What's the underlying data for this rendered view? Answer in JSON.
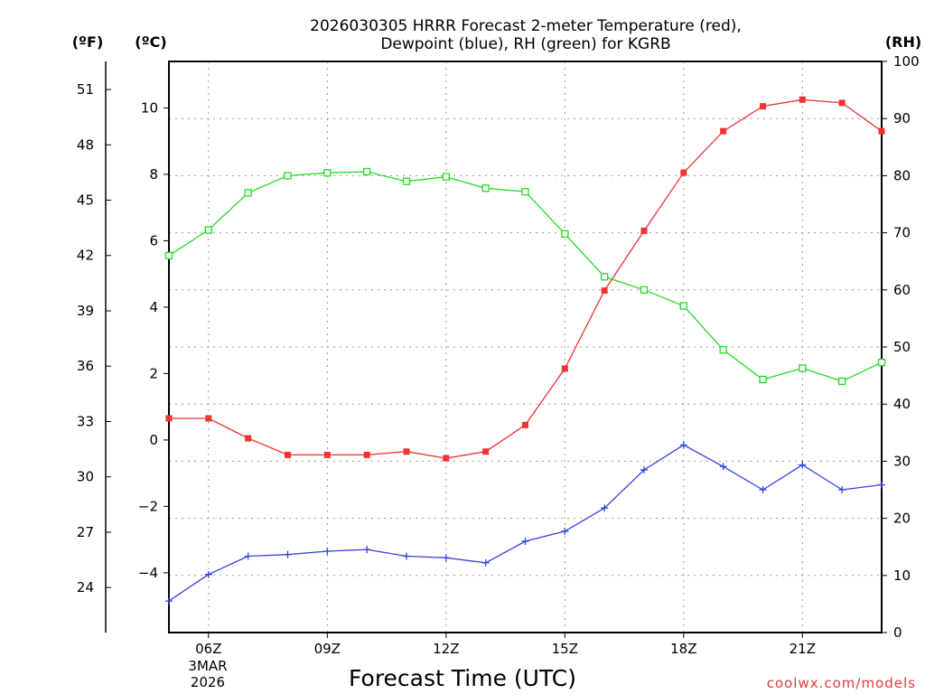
{
  "chart_data": {
    "type": "line",
    "title_line1": "2026030305 HRRR Forecast 2-meter Temperature (red),",
    "title_line2": "Dewpoint (blue), RH (green) for KGRB",
    "xlabel": "Forecast Time (UTC)",
    "credit": "coolwx.com/models",
    "date_label_line1": "3MAR",
    "date_label_line2": "2026",
    "units": {
      "fahrenheit": "(ºF)",
      "celsius": "(ºC)",
      "rh": "(RH)"
    },
    "x_hours": [
      5,
      6,
      7,
      8,
      9,
      10,
      11,
      12,
      13,
      14,
      15,
      16,
      17,
      18,
      19,
      20,
      21,
      22,
      23
    ],
    "x_range": [
      5,
      23
    ],
    "x_ticks": [
      {
        "hour": 6,
        "label": "06Z"
      },
      {
        "hour": 9,
        "label": "09Z"
      },
      {
        "hour": 12,
        "label": "12Z"
      },
      {
        "hour": 15,
        "label": "15Z"
      },
      {
        "hour": 18,
        "label": "18Z"
      },
      {
        "hour": 21,
        "label": "21Z"
      }
    ],
    "celsius_range": [
      -5.8,
      11.4
    ],
    "celsius_ticks": [
      {
        "value": -4,
        "label": "−4"
      },
      {
        "value": -2,
        "label": "−2"
      },
      {
        "value": 0,
        "label": "0"
      },
      {
        "value": 2,
        "label": "2"
      },
      {
        "value": 4,
        "label": "4"
      },
      {
        "value": 6,
        "label": "6"
      },
      {
        "value": 8,
        "label": "8"
      },
      {
        "value": 10,
        "label": "10"
      }
    ],
    "fahrenheit_ticks": [
      {
        "value": 24,
        "label": "24"
      },
      {
        "value": 27,
        "label": "27"
      },
      {
        "value": 30,
        "label": "30"
      },
      {
        "value": 33,
        "label": "33"
      },
      {
        "value": 36,
        "label": "36"
      },
      {
        "value": 39,
        "label": "39"
      },
      {
        "value": 42,
        "label": "42"
      },
      {
        "value": 45,
        "label": "45"
      },
      {
        "value": 48,
        "label": "48"
      },
      {
        "value": 51,
        "label": "51"
      }
    ],
    "rh_range": [
      0,
      100
    ],
    "rh_ticks": [
      {
        "value": 0,
        "label": "0"
      },
      {
        "value": 10,
        "label": "10"
      },
      {
        "value": 20,
        "label": "20"
      },
      {
        "value": 30,
        "label": "30"
      },
      {
        "value": 40,
        "label": "40"
      },
      {
        "value": 50,
        "label": "50"
      },
      {
        "value": 60,
        "label": "60"
      },
      {
        "value": 70,
        "label": "70"
      },
      {
        "value": 80,
        "label": "80"
      },
      {
        "value": 90,
        "label": "90"
      },
      {
        "value": 100,
        "label": "100"
      }
    ],
    "grid": true,
    "series": [
      {
        "name": "2-meter Temperature",
        "axis": "celsius",
        "color": "#ee3333",
        "marker": "filled-square",
        "values": [
          0.65,
          0.65,
          0.05,
          -0.45,
          -0.45,
          -0.45,
          -0.35,
          -0.55,
          -0.35,
          0.45,
          2.15,
          4.5,
          6.3,
          8.05,
          9.3,
          10.05,
          10.25,
          10.15,
          9.3
        ]
      },
      {
        "name": "Dewpoint",
        "axis": "celsius",
        "color": "#3344dd",
        "marker": "plus",
        "values": [
          -4.85,
          -4.05,
          -3.5,
          -3.45,
          -3.35,
          -3.3,
          -3.5,
          -3.55,
          -3.7,
          -3.05,
          -2.75,
          -2.05,
          -0.9,
          -0.15,
          -0.8,
          -1.5,
          -0.75,
          -1.5,
          -1.35
        ]
      },
      {
        "name": "RH",
        "axis": "rh",
        "color": "#22dd22",
        "marker": "open-square",
        "values": [
          66,
          70.5,
          77,
          80,
          80.5,
          80.7,
          79,
          79.8,
          77.8,
          77.2,
          69.8,
          62.3,
          60,
          57.2,
          49.5,
          44.3,
          46.3,
          44,
          47.3
        ]
      }
    ]
  }
}
